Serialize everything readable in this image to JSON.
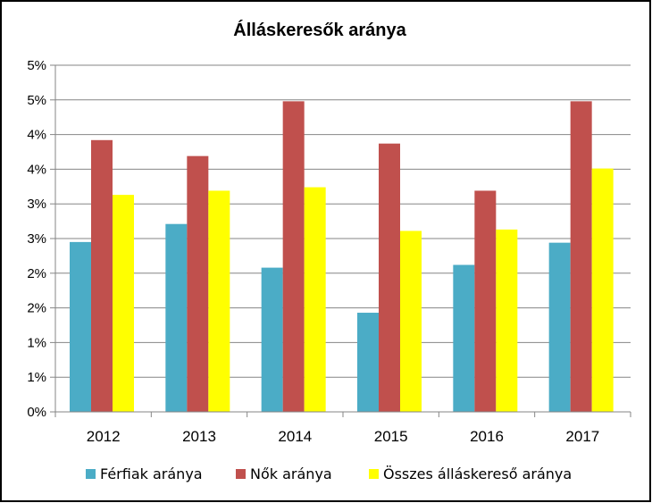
{
  "chart_data": {
    "type": "bar",
    "title": "Álláskeresők aránya",
    "categories": [
      "2012",
      "2013",
      "2014",
      "2015",
      "2016",
      "2017"
    ],
    "ytick_labels": [
      "0%",
      "1%",
      "1%",
      "2%",
      "2%",
      "3%",
      "3%",
      "4%",
      "4%",
      "5%",
      "5%"
    ],
    "ylim": [
      0,
      5.0
    ],
    "ytick_step": 0.5,
    "grid": true,
    "legend_position": "bottom",
    "series": [
      {
        "name": "Férfiak aránya",
        "color": "#4bacc6",
        "values": [
          2.45,
          2.71,
          2.08,
          1.43,
          2.12,
          2.44
        ]
      },
      {
        "name": "Nők aránya",
        "color": "#c0504d",
        "values": [
          3.92,
          3.69,
          4.48,
          3.87,
          3.19,
          4.48
        ]
      },
      {
        "name": "Összes álláskereső aránya",
        "color": "#ffff00",
        "values": [
          3.13,
          3.19,
          3.24,
          2.61,
          2.63,
          3.51
        ]
      }
    ]
  }
}
